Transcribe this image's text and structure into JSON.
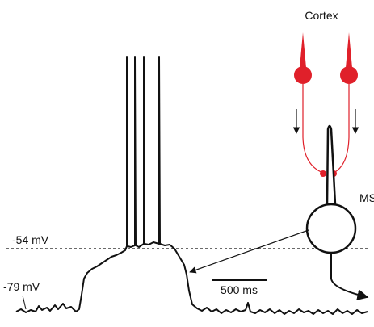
{
  "labels": {
    "cortex": "Cortex",
    "msn": "MSN"
  },
  "trace": {
    "upper_level": "-54 mV",
    "lower_level": "-79 mV",
    "scale_bar": "500 ms"
  }
}
